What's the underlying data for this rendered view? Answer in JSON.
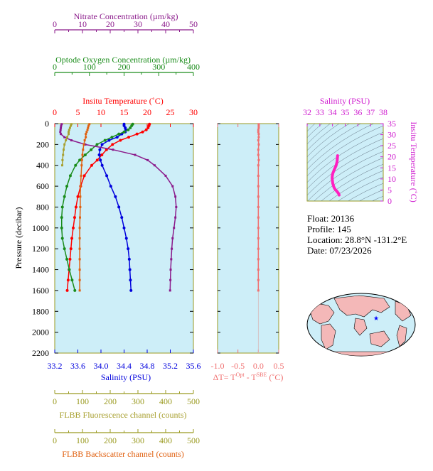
{
  "info": {
    "float_line": "Float:  20136",
    "profile_line": "Profile:  145",
    "location_line": "Location:  28.8°N  -131.2°E",
    "date_line": "Date:  07/23/2026"
  },
  "colors": {
    "nitrate": "#8b1a8b",
    "oxygen": "#1a8c1a",
    "temperature": "#ff0000",
    "salinity": "#0000dd",
    "fluorescence": "#a8a030",
    "backscatter": "#e06010",
    "deltat": "#f07070",
    "panel_bg": "#cdeef8",
    "axis": "#9a9a20"
  },
  "chart_data": [
    {
      "type": "line",
      "axes": {
        "pressure": {
          "label": "Pressure (decibar)",
          "range": [
            0,
            2200
          ],
          "ticks": [
            "0",
            "200",
            "400",
            "600",
            "800",
            "1000",
            "1200",
            "1400",
            "1600",
            "1800",
            "2000",
            "2200"
          ]
        },
        "nitrate": {
          "label": "Nitrate Concentration (µm/kg)",
          "range": [
            0,
            50
          ],
          "ticks": [
            "0",
            "10",
            "20",
            "30",
            "40",
            "50"
          ]
        },
        "oxygen": {
          "label": "Optode Oxygen Concentration (µm/kg)",
          "range": [
            0,
            400
          ],
          "ticks": [
            "0",
            "100",
            "200",
            "300",
            "400"
          ]
        },
        "temperature": {
          "label": "Insitu Temperature (˚C)",
          "range": [
            0,
            30
          ],
          "ticks": [
            "0",
            "5",
            "10",
            "15",
            "20",
            "25",
            "30"
          ]
        },
        "salinity": {
          "label": "Salinity (PSU)",
          "range": [
            33.2,
            35.6
          ],
          "ticks": [
            "33.2",
            "33.6",
            "34.0",
            "34.4",
            "34.8",
            "35.2",
            "35.6"
          ]
        },
        "fluorescence": {
          "label": "FLBB Fluorescence channel (counts)",
          "range": [
            0,
            500
          ],
          "ticks": [
            "0",
            "100",
            "200",
            "300",
            "400",
            "500"
          ]
        },
        "backscatter": {
          "label": "FLBB Backscatter channel (counts)",
          "range": [
            0,
            500
          ],
          "ticks": [
            "0",
            "100",
            "200",
            "300",
            "400",
            "500"
          ]
        }
      },
      "series": [
        {
          "key": "temperature",
          "pressure": [
            5,
            20,
            40,
            60,
            80,
            100,
            130,
            160,
            200,
            250,
            300,
            350,
            400,
            500,
            600,
            700,
            800,
            900,
            1000,
            1100,
            1200,
            1300,
            1400,
            1500,
            1600
          ],
          "values": [
            20.5,
            20.4,
            20.2,
            19.8,
            19.0,
            17.8,
            16.0,
            14.2,
            12.5,
            11.2,
            10.2,
            9.2,
            8.0,
            6.4,
            5.6,
            5.0,
            4.6,
            4.3,
            4.0,
            3.7,
            3.5,
            3.3,
            3.1,
            2.9,
            2.7
          ]
        },
        {
          "key": "salinity",
          "pressure": [
            5,
            20,
            40,
            60,
            80,
            100,
            130,
            160,
            200,
            250,
            300,
            350,
            400,
            500,
            600,
            700,
            800,
            900,
            1000,
            1100,
            1200,
            1300,
            1400,
            1500,
            1600
          ],
          "values": [
            34.4,
            34.4,
            34.42,
            34.43,
            34.42,
            34.36,
            34.28,
            34.14,
            34.02,
            33.98,
            33.97,
            33.99,
            34.02,
            34.1,
            34.17,
            34.25,
            34.31,
            34.36,
            34.4,
            34.44,
            34.47,
            34.49,
            34.5,
            34.51,
            34.52
          ]
        },
        {
          "key": "oxygen",
          "pressure": [
            5,
            20,
            40,
            60,
            80,
            100,
            130,
            160,
            200,
            250,
            300,
            350,
            400,
            500,
            600,
            700,
            800,
            900,
            1000,
            1100,
            1200,
            1300,
            1400,
            1500,
            1600
          ],
          "values": [
            225,
            222,
            218,
            212,
            200,
            185,
            165,
            145,
            122,
            105,
            88,
            72,
            60,
            45,
            35,
            28,
            22,
            20,
            20,
            22,
            28,
            35,
            42,
            50,
            58
          ]
        },
        {
          "key": "nitrate",
          "pressure": [
            5,
            20,
            40,
            60,
            80,
            100,
            130,
            160,
            200,
            250,
            300,
            350,
            400,
            500,
            600,
            700,
            800,
            900,
            1000,
            1100,
            1200,
            1300,
            1400,
            1500,
            1600
          ],
          "values": [
            2.5,
            2.3,
            2.2,
            2.1,
            2.0,
            2.2,
            3.5,
            6.0,
            11.0,
            21.0,
            29.0,
            33.5,
            36.0,
            40.0,
            42.5,
            43.5,
            43.8,
            43.5,
            43.0,
            42.5,
            42.2,
            42.0,
            41.8,
            41.7,
            41.6
          ]
        },
        {
          "key": "fluorescence",
          "pressure": [
            5,
            20,
            40,
            60,
            80,
            100,
            130,
            160,
            200,
            250,
            300,
            350,
            400
          ],
          "values": [
            60,
            58,
            55,
            52,
            50,
            50,
            45,
            40,
            35,
            32,
            30,
            28,
            27
          ]
        },
        {
          "key": "backscatter",
          "pressure": [
            5,
            20,
            40,
            60,
            80,
            100,
            130,
            160,
            200,
            250,
            300,
            350,
            400,
            500,
            600,
            700,
            800,
            900,
            1000,
            1100,
            1200,
            1300,
            1400,
            1500,
            1600
          ],
          "values": [
            125,
            122,
            120,
            118,
            115,
            112,
            112,
            108,
            105,
            102,
            100,
            98,
            97,
            95,
            93,
            92,
            92,
            91,
            90,
            90,
            90,
            90,
            90,
            90,
            90
          ]
        }
      ]
    },
    {
      "type": "scatter",
      "xlabel": "ΔT= T^Opt - T^SBE (˚C)",
      "x_ticks": [
        "-1.0",
        "-0.5",
        "0.0",
        "0.5"
      ],
      "xlim": [
        -1.0,
        0.5
      ],
      "pressure": [
        5,
        20,
        40,
        60,
        80,
        100,
        130,
        160,
        200,
        250,
        300,
        350,
        400,
        500,
        600,
        700,
        800,
        900,
        1000,
        1100,
        1200,
        1300,
        1400,
        1500,
        1600
      ],
      "values": [
        0.01,
        0.01,
        0.01,
        0.0,
        0.0,
        0.01,
        0.01,
        0.0,
        0.01,
        0.0,
        0.0,
        0.01,
        0.0,
        0.0,
        0.0,
        0.0,
        0.0,
        0.0,
        0.0,
        0.0,
        0.0,
        0.0,
        0.0,
        0.0,
        0.0
      ]
    },
    {
      "type": "line",
      "title": "Salinity (PSU)",
      "xlabel": "Salinity (PSU)",
      "ylabel": "Insitu Temperature (˚C)",
      "x_ticks": [
        "32",
        "33",
        "34",
        "35",
        "36",
        "37",
        "38"
      ],
      "y_ticks": [
        "0",
        "5",
        "10",
        "15",
        "20",
        "25",
        "30",
        "35"
      ],
      "xlim": [
        32,
        38
      ],
      "ylim": [
        0,
        35
      ],
      "salinity": [
        34.52,
        34.49,
        34.44,
        34.36,
        34.25,
        34.17,
        34.1,
        34.02,
        33.97,
        33.98,
        34.02,
        34.14,
        34.28,
        34.36,
        34.4
      ],
      "temperature": [
        2.7,
        3.3,
        3.7,
        4.3,
        5.0,
        5.6,
        6.4,
        8.0,
        10.2,
        11.2,
        12.5,
        14.2,
        16.0,
        17.8,
        20.5
      ]
    }
  ]
}
